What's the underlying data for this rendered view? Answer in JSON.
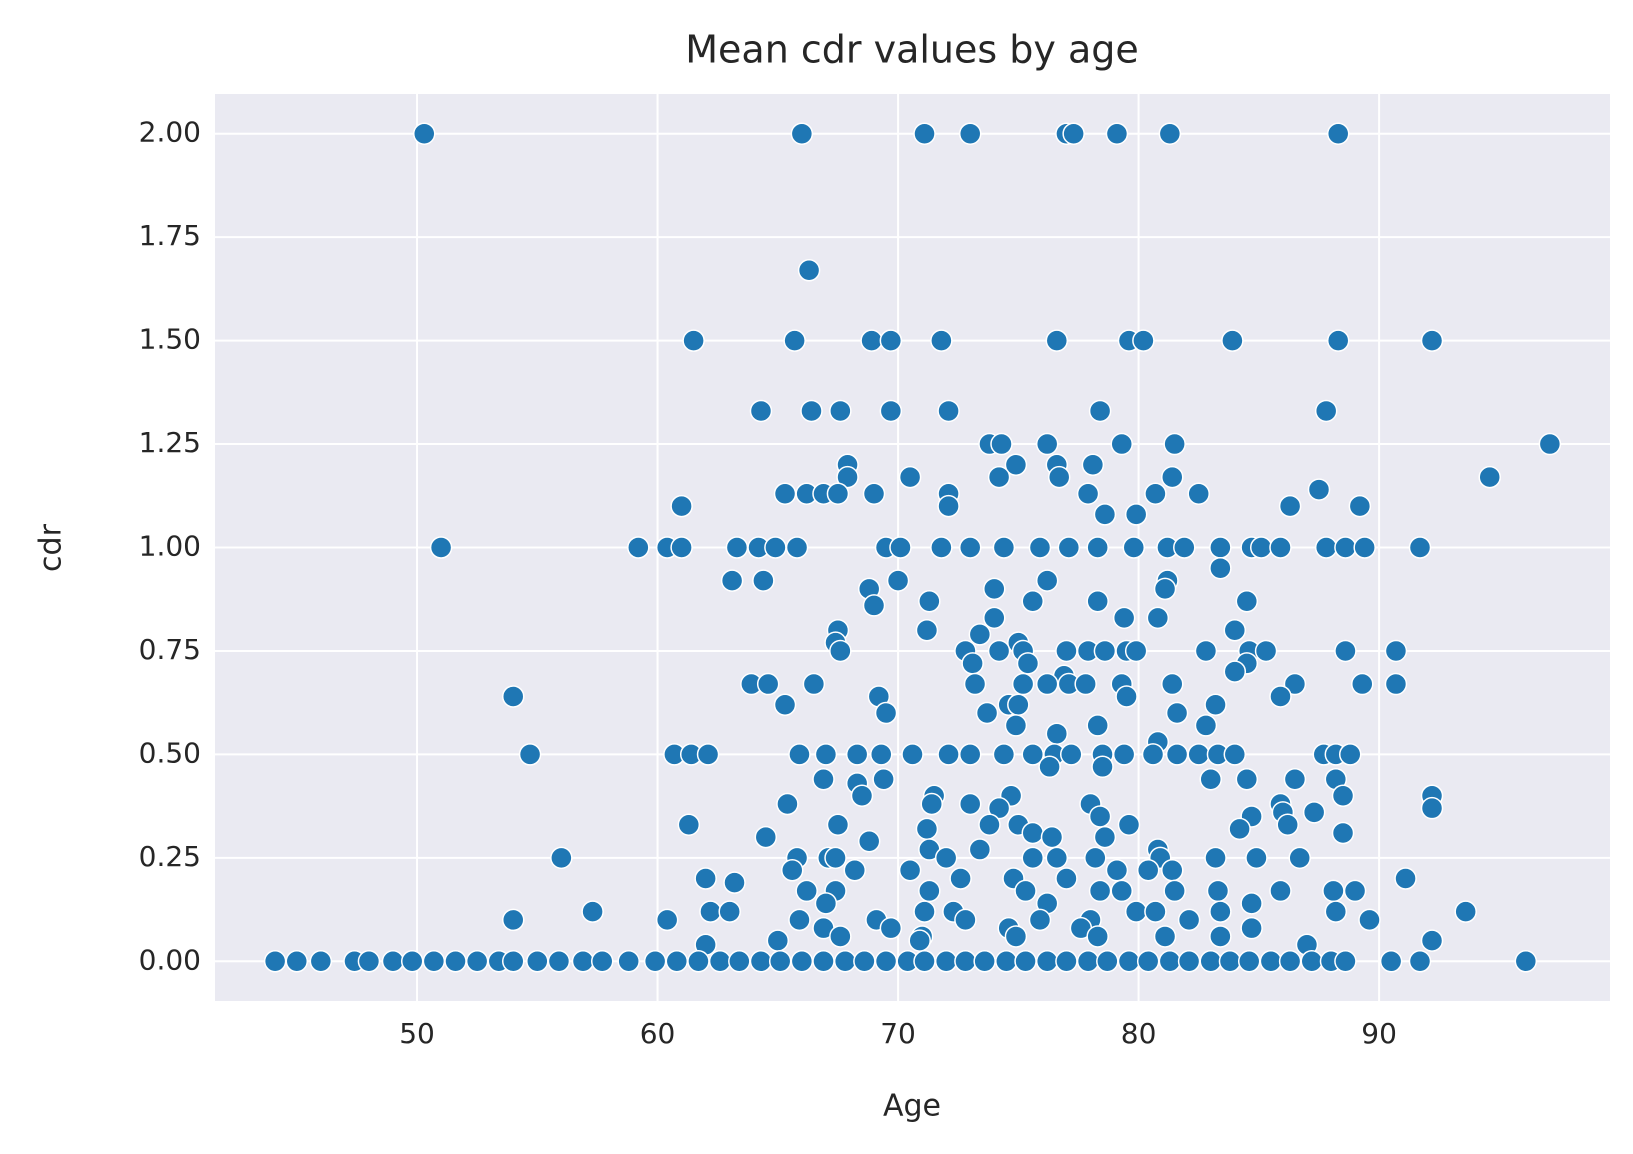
{
  "chart_data": {
    "type": "scatter",
    "title": "Mean cdr values by age",
    "x_label": "Age",
    "y_label": "cdr",
    "color": "#1f77b4",
    "grid": true,
    "background": "#eaeaf2",
    "xlim": [
      41.6,
      99.6
    ],
    "xticks": [
      50,
      60,
      70,
      80,
      90
    ],
    "ylim": [
      -0.096,
      2.096
    ],
    "yticks": [
      {
        "value": 0,
        "label": "0.00"
      },
      {
        "value": 0.25,
        "label": "0.25"
      },
      {
        "value": 0.5,
        "label": "0.50"
      },
      {
        "value": 0.75,
        "label": "0.75"
      },
      {
        "value": 1,
        "label": "1.00"
      },
      {
        "value": 1.25,
        "label": "1.25"
      },
      {
        "value": 1.5,
        "label": "1.50"
      },
      {
        "value": 1.75,
        "label": "1.75"
      },
      {
        "value": 2,
        "label": "2.00"
      }
    ],
    "x": [
      50.3,
      66.0,
      71.1,
      73.0,
      77.0,
      77.3,
      79.1,
      81.3,
      88.3,
      66.3,
      61.5,
      65.7,
      68.9,
      69.7,
      71.8,
      76.6,
      79.6,
      80.2,
      83.9,
      88.3,
      92.2,
      64.3,
      66.4,
      67.6,
      69.7,
      72.1,
      78.4,
      87.8,
      73.8,
      74.3,
      76.2,
      79.3,
      81.5,
      97.1,
      67.9,
      74.9,
      76.6,
      78.1,
      67.9,
      70.5,
      74.2,
      76.7,
      81.4,
      94.6,
      87.5,
      65.3,
      66.2,
      66.9,
      67.5,
      69.0,
      72.1,
      77.9,
      80.7,
      82.5,
      61.0,
      72.1,
      86.3,
      89.2,
      78.6,
      79.9,
      51.0,
      59.2,
      60.4,
      61.0,
      63.3,
      64.2,
      64.9,
      65.8,
      69.5,
      70.1,
      71.8,
      73.0,
      74.4,
      75.9,
      77.1,
      78.3,
      79.8,
      81.2,
      81.9,
      83.4,
      84.7,
      85.1,
      85.9,
      87.8,
      88.6,
      89.4,
      91.7,
      83.4,
      63.1,
      64.4,
      70.0,
      76.2,
      81.2,
      68.8,
      74.0,
      81.1,
      71.3,
      75.6,
      78.3,
      84.5,
      69.0,
      74.0,
      79.4,
      80.8,
      67.5,
      71.2,
      84.0,
      73.4,
      67.4,
      75.0,
      67.6,
      72.8,
      74.2,
      75.2,
      77.0,
      77.9,
      78.6,
      79.5,
      79.9,
      82.8,
      84.6,
      85.3,
      88.6,
      90.7,
      73.1,
      75.4,
      84.5,
      84.0,
      76.9,
      63.9,
      64.6,
      66.5,
      73.2,
      75.2,
      76.2,
      77.1,
      77.8,
      79.3,
      81.4,
      86.5,
      89.3,
      90.7,
      54.0,
      69.2,
      79.5,
      85.9,
      65.3,
      74.6,
      75.0,
      83.2,
      69.5,
      73.7,
      81.6,
      74.9,
      78.3,
      82.8,
      76.6,
      80.8,
      54.7,
      60.7,
      61.4,
      62.1,
      65.9,
      67.0,
      68.3,
      69.3,
      70.6,
      72.1,
      73.0,
      74.4,
      75.6,
      76.5,
      77.2,
      78.5,
      79.4,
      80.6,
      81.6,
      82.5,
      83.3,
      84.0,
      87.7,
      88.2,
      88.8,
      76.3,
      78.5,
      66.9,
      69.4,
      83.0,
      84.5,
      86.5,
      88.2,
      68.3,
      68.5,
      71.5,
      74.7,
      88.5,
      92.2,
      65.4,
      71.4,
      73.0,
      78.0,
      85.9,
      74.2,
      92.2,
      86.0,
      87.3,
      78.4,
      84.7,
      61.3,
      67.5,
      73.8,
      75.0,
      79.6,
      86.2,
      71.2,
      84.2,
      75.6,
      88.5,
      64.5,
      76.4,
      78.6,
      68.8,
      71.3,
      73.4,
      80.8,
      56.0,
      65.8,
      67.1,
      67.4,
      72.0,
      75.6,
      76.6,
      78.2,
      80.9,
      83.2,
      84.9,
      86.7,
      65.6,
      68.2,
      70.5,
      79.1,
      80.4,
      81.4,
      62.0,
      72.6,
      74.8,
      77.0,
      91.1,
      63.2,
      66.2,
      67.4,
      71.3,
      75.3,
      78.4,
      79.3,
      81.5,
      83.3,
      85.9,
      88.1,
      89.0,
      67.0,
      76.2,
      84.7,
      57.3,
      62.2,
      63.0,
      71.1,
      72.3,
      79.9,
      80.7,
      83.4,
      88.2,
      93.6,
      54.0,
      60.4,
      65.9,
      69.1,
      72.8,
      75.9,
      78.0,
      82.1,
      89.6,
      66.9,
      69.7,
      74.6,
      77.6,
      84.7,
      67.6,
      71.0,
      74.9,
      78.3,
      81.1,
      83.4,
      65.0,
      70.9,
      92.2,
      62.0,
      87.0,
      44.1,
      45.0,
      46.0,
      47.4,
      48.0,
      49.0,
      49.8,
      50.7,
      51.6,
      52.5,
      53.4,
      54.0,
      55.0,
      55.9,
      56.9,
      57.7,
      58.8,
      59.9,
      60.8,
      61.7,
      62.6,
      63.4,
      64.3,
      65.1,
      66.0,
      66.9,
      67.8,
      68.6,
      69.5,
      70.4,
      71.1,
      72.0,
      72.8,
      73.6,
      74.5,
      75.3,
      76.2,
      77.0,
      77.9,
      78.7,
      79.6,
      80.4,
      81.3,
      82.1,
      83.0,
      83.8,
      84.6,
      85.5,
      86.3,
      87.2,
      88.0,
      88.6,
      90.5,
      91.7,
      96.1
    ],
    "values": [
      2,
      2,
      2,
      2,
      2,
      2,
      2,
      2,
      2,
      1.67,
      1.5,
      1.5,
      1.5,
      1.5,
      1.5,
      1.5,
      1.5,
      1.5,
      1.5,
      1.5,
      1.5,
      1.33,
      1.33,
      1.33,
      1.33,
      1.33,
      1.33,
      1.33,
      1.25,
      1.25,
      1.25,
      1.25,
      1.25,
      1.25,
      1.2,
      1.2,
      1.2,
      1.2,
      1.17,
      1.17,
      1.17,
      1.17,
      1.17,
      1.17,
      1.14,
      1.13,
      1.13,
      1.13,
      1.13,
      1.13,
      1.13,
      1.13,
      1.13,
      1.13,
      1.1,
      1.1,
      1.1,
      1.1,
      1.08,
      1.08,
      1,
      1,
      1,
      1,
      1,
      1,
      1,
      1,
      1,
      1,
      1,
      1,
      1,
      1,
      1,
      1,
      1,
      1,
      1,
      1,
      1,
      1,
      1,
      1,
      1,
      1,
      1,
      0.95,
      0.92,
      0.92,
      0.92,
      0.92,
      0.92,
      0.9,
      0.9,
      0.9,
      0.87,
      0.87,
      0.87,
      0.87,
      0.86,
      0.83,
      0.83,
      0.83,
      0.8,
      0.8,
      0.8,
      0.79,
      0.77,
      0.77,
      0.75,
      0.75,
      0.75,
      0.75,
      0.75,
      0.75,
      0.75,
      0.75,
      0.75,
      0.75,
      0.75,
      0.75,
      0.75,
      0.75,
      0.72,
      0.72,
      0.72,
      0.7,
      0.69,
      0.67,
      0.67,
      0.67,
      0.67,
      0.67,
      0.67,
      0.67,
      0.67,
      0.67,
      0.67,
      0.67,
      0.67,
      0.67,
      0.64,
      0.64,
      0.64,
      0.64,
      0.62,
      0.62,
      0.62,
      0.62,
      0.6,
      0.6,
      0.6,
      0.57,
      0.57,
      0.57,
      0.55,
      0.53,
      0.5,
      0.5,
      0.5,
      0.5,
      0.5,
      0.5,
      0.5,
      0.5,
      0.5,
      0.5,
      0.5,
      0.5,
      0.5,
      0.5,
      0.5,
      0.5,
      0.5,
      0.5,
      0.5,
      0.5,
      0.5,
      0.5,
      0.5,
      0.5,
      0.5,
      0.47,
      0.47,
      0.44,
      0.44,
      0.44,
      0.44,
      0.44,
      0.44,
      0.43,
      0.4,
      0.4,
      0.4,
      0.4,
      0.4,
      0.38,
      0.38,
      0.38,
      0.38,
      0.38,
      0.37,
      0.37,
      0.36,
      0.36,
      0.35,
      0.35,
      0.33,
      0.33,
      0.33,
      0.33,
      0.33,
      0.33,
      0.32,
      0.32,
      0.31,
      0.31,
      0.3,
      0.3,
      0.3,
      0.29,
      0.27,
      0.27,
      0.27,
      0.25,
      0.25,
      0.25,
      0.25,
      0.25,
      0.25,
      0.25,
      0.25,
      0.25,
      0.25,
      0.25,
      0.25,
      0.22,
      0.22,
      0.22,
      0.22,
      0.22,
      0.22,
      0.2,
      0.2,
      0.2,
      0.2,
      0.2,
      0.19,
      0.17,
      0.17,
      0.17,
      0.17,
      0.17,
      0.17,
      0.17,
      0.17,
      0.17,
      0.17,
      0.17,
      0.14,
      0.14,
      0.14,
      0.12,
      0.12,
      0.12,
      0.12,
      0.12,
      0.12,
      0.12,
      0.12,
      0.12,
      0.12,
      0.1,
      0.1,
      0.1,
      0.1,
      0.1,
      0.1,
      0.1,
      0.1,
      0.1,
      0.08,
      0.08,
      0.08,
      0.08,
      0.08,
      0.06,
      0.06,
      0.06,
      0.06,
      0.06,
      0.06,
      0.05,
      0.05,
      0.05,
      0.04,
      0.04,
      0,
      0,
      0,
      0,
      0,
      0,
      0,
      0,
      0,
      0,
      0,
      0,
      0,
      0,
      0,
      0,
      0,
      0,
      0,
      0,
      0,
      0,
      0,
      0,
      0,
      0,
      0,
      0,
      0,
      0,
      0,
      0,
      0,
      0,
      0,
      0,
      0,
      0,
      0,
      0,
      0,
      0,
      0,
      0,
      0,
      0,
      0,
      0,
      0,
      0,
      0,
      0,
      0,
      0,
      0
    ]
  }
}
